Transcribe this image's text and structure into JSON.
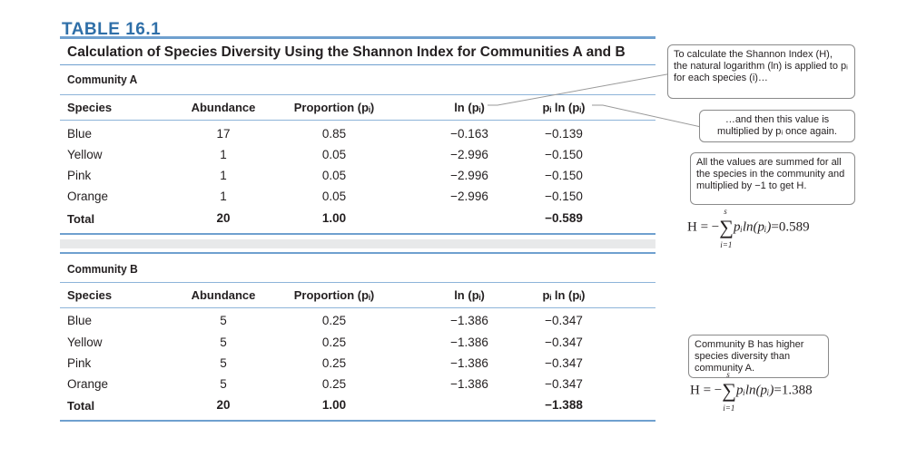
{
  "table_label": "TABLE 16.1",
  "caption": "Calculation of Species Diversity Using the Shannon Index for Communities A and B",
  "columns": [
    "Species",
    "Abundance",
    "Proportion (pᵢ)",
    "ln (pᵢ)",
    "pᵢ ln (pᵢ)"
  ],
  "community_a": {
    "title": "Community A",
    "rows": [
      {
        "species": "Blue",
        "abundance": "17",
        "proportion": "0.85",
        "ln": "−0.163",
        "pln": "−0.139"
      },
      {
        "species": "Yellow",
        "abundance": "1",
        "proportion": "0.05",
        "ln": "−2.996",
        "pln": "−0.150"
      },
      {
        "species": "Pink",
        "abundance": "1",
        "proportion": "0.05",
        "ln": "−2.996",
        "pln": "−0.150"
      },
      {
        "species": "Orange",
        "abundance": "1",
        "proportion": "0.05",
        "ln": "−2.996",
        "pln": "−0.150"
      }
    ],
    "total": {
      "label": "Total",
      "abundance": "20",
      "proportion": "1.00",
      "pln": "−0.589"
    }
  },
  "community_b": {
    "title": "Community B",
    "rows": [
      {
        "species": "Blue",
        "abundance": "5",
        "proportion": "0.25",
        "ln": "−1.386",
        "pln": "−0.347"
      },
      {
        "species": "Yellow",
        "abundance": "5",
        "proportion": "0.25",
        "ln": "−1.386",
        "pln": "−0.347"
      },
      {
        "species": "Pink",
        "abundance": "5",
        "proportion": "0.25",
        "ln": "−1.386",
        "pln": "−0.347"
      },
      {
        "species": "Orange",
        "abundance": "5",
        "proportion": "0.25",
        "ln": "−1.386",
        "pln": "−0.347"
      }
    ],
    "total": {
      "label": "Total",
      "abundance": "20",
      "proportion": "1.00",
      "pln": "−1.388"
    }
  },
  "notes": {
    "note1": "To calculate the Shannon Index (H), the natural logarithm (ln) is applied to pᵢ for each species (i)…",
    "note2": "…and then this value is multiplied by pᵢ once again.",
    "note3": "All the values are summed for all the species in the community and multiplied by −1 to get H.",
    "note4": "Community B has higher species diversity than community A."
  },
  "formulas": {
    "a_value": "=0.589",
    "b_value": "=1.388",
    "lhs": "H = −",
    "term": "pᵢln(pᵢ)",
    "sum_upper": "s",
    "sum_lower": "i=1"
  }
}
